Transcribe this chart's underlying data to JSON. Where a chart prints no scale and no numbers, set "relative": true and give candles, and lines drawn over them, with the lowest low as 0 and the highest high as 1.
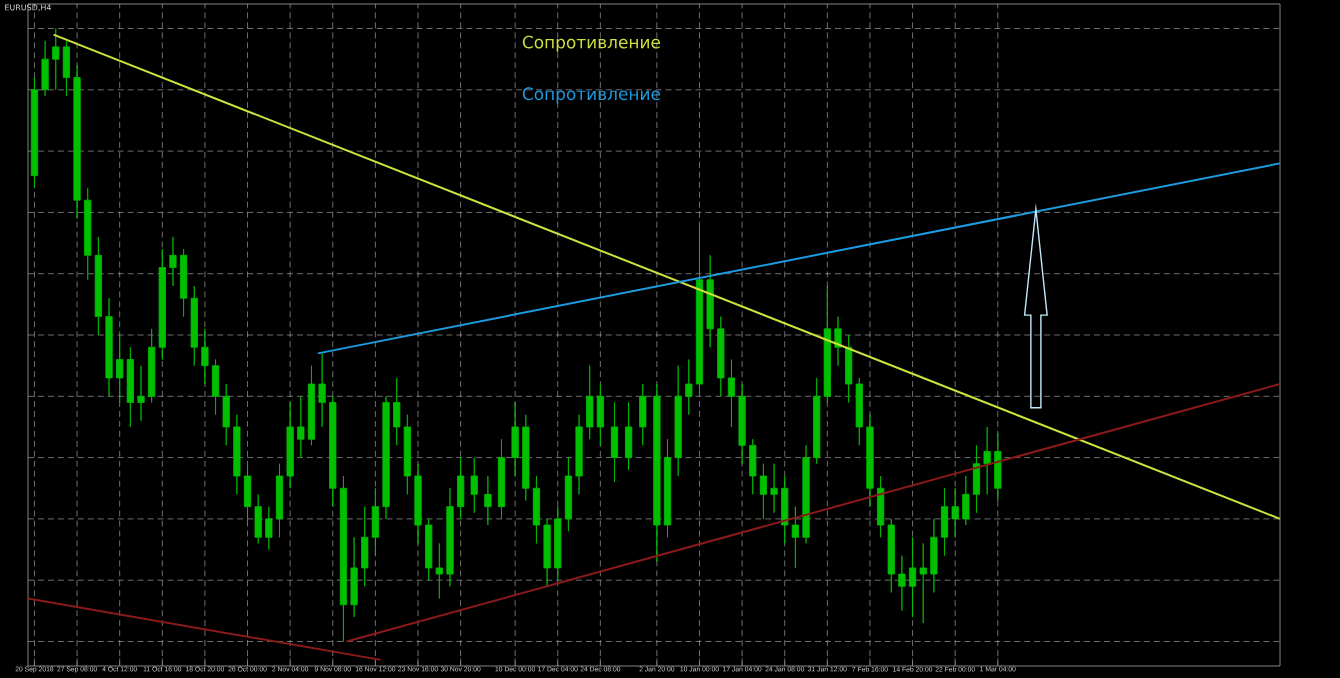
{
  "chart_data": {
    "type": "candlestick",
    "title": "EURUSD,H4",
    "relative": true,
    "color": "#00c000",
    "grid": true,
    "x": [
      "2018-09-20T04:00",
      "2018-09-21T23:00",
      "2018-09-23T18:00",
      "2018-09-25T13:00",
      "2018-09-27T08:00",
      "2018-09-29T03:00",
      "2018-09-30T22:00",
      "2018-10-02T17:00",
      "2018-10-04T12:00",
      "2018-10-06T07:00",
      "2018-10-08T02:00",
      "2018-10-09T21:00",
      "2018-10-11T16:00",
      "2018-10-13T11:00",
      "2018-10-15T06:00",
      "2018-10-17T01:00",
      "2018-10-18T20:00",
      "2018-10-20T15:00",
      "2018-10-22T10:00",
      "2018-10-24T05:00",
      "2018-10-26T00:00",
      "2018-10-27T19:00",
      "2018-10-29T14:00",
      "2018-10-31T09:00",
      "2018-11-02T04:00",
      "2018-11-03T23:00",
      "2018-11-05T18:00",
      "2018-11-07T13:00",
      "2018-11-09T08:00",
      "2018-11-11T03:00",
      "2018-11-12T22:00",
      "2018-11-14T17:00",
      "2018-11-16T12:00",
      "2018-11-18T07:00",
      "2018-11-20T02:00",
      "2018-11-21T21:00",
      "2018-11-23T16:00",
      "2018-11-25T11:00",
      "2018-11-27T06:00",
      "2018-11-29T01:00",
      "2018-11-30T20:00",
      "2018-12-03T03:00",
      "2018-12-05T10:00",
      "2018-12-07T17:00",
      "2018-12-10T00:00",
      "2018-12-11T19:00",
      "2018-12-13T14:00",
      "2018-12-15T09:00",
      "2018-12-17T04:00",
      "2018-12-18T23:00",
      "2018-12-20T18:00",
      "2018-12-22T13:00",
      "2018-12-24T08:00",
      "2018-12-26T17:00",
      "2018-12-29T02:00",
      "2018-12-31T11:00",
      "2019-01-02T20:00",
      "2019-01-04T15:00",
      "2019-01-06T10:00",
      "2019-01-08T05:00",
      "2019-01-10T00:00",
      "2019-01-11T19:00",
      "2019-01-13T14:00",
      "2019-01-15T09:00",
      "2019-01-17T04:00",
      "2019-01-18T23:00",
      "2019-01-20T18:00",
      "2019-01-22T13:00",
      "2019-01-24T08:00",
      "2019-01-26T03:00",
      "2019-01-27T22:00",
      "2019-01-29T17:00",
      "2019-01-31T12:00",
      "2019-02-02T07:00",
      "2019-02-04T02:00",
      "2019-02-05T21:00",
      "2019-02-07T16:00",
      "2019-02-09T11:00",
      "2019-02-11T06:00",
      "2019-02-13T01:00",
      "2019-02-14T20:00",
      "2019-02-16T15:00",
      "2019-02-18T10:00",
      "2019-02-20T05:00",
      "2019-02-22T00:00",
      "2019-02-23T19:00",
      "2019-02-25T14:00",
      "2019-02-27T09:00",
      "2019-03-01T04:00"
    ],
    "ohlc": [
      [
        0.76,
        0.92,
        0.74,
        0.9
      ],
      [
        0.9,
        0.98,
        0.89,
        0.95
      ],
      [
        0.95,
        1.0,
        0.9,
        0.97
      ],
      [
        0.97,
        0.98,
        0.89,
        0.92
      ],
      [
        0.92,
        0.94,
        0.69,
        0.72
      ],
      [
        0.72,
        0.74,
        0.59,
        0.63
      ],
      [
        0.63,
        0.66,
        0.5,
        0.53
      ],
      [
        0.53,
        0.56,
        0.4,
        0.43
      ],
      [
        0.43,
        0.5,
        0.39,
        0.46
      ],
      [
        0.46,
        0.48,
        0.35,
        0.39
      ],
      [
        0.39,
        0.45,
        0.36,
        0.4
      ],
      [
        0.4,
        0.51,
        0.39,
        0.48
      ],
      [
        0.48,
        0.64,
        0.46,
        0.61
      ],
      [
        0.61,
        0.66,
        0.58,
        0.63
      ],
      [
        0.63,
        0.64,
        0.53,
        0.56
      ],
      [
        0.56,
        0.58,
        0.45,
        0.48
      ],
      [
        0.48,
        0.51,
        0.42,
        0.45
      ],
      [
        0.45,
        0.46,
        0.37,
        0.4
      ],
      [
        0.4,
        0.42,
        0.32,
        0.35
      ],
      [
        0.35,
        0.37,
        0.24,
        0.27
      ],
      [
        0.27,
        0.29,
        0.19,
        0.22
      ],
      [
        0.22,
        0.24,
        0.16,
        0.17
      ],
      [
        0.17,
        0.22,
        0.15,
        0.2
      ],
      [
        0.2,
        0.29,
        0.17,
        0.27
      ],
      [
        0.27,
        0.39,
        0.25,
        0.35
      ],
      [
        0.35,
        0.4,
        0.3,
        0.33
      ],
      [
        0.33,
        0.45,
        0.32,
        0.42
      ],
      [
        0.42,
        0.47,
        0.35,
        0.39
      ],
      [
        0.39,
        0.4,
        0.22,
        0.25
      ],
      [
        0.25,
        0.27,
        0.0,
        0.06
      ],
      [
        0.06,
        0.17,
        0.04,
        0.12
      ],
      [
        0.12,
        0.22,
        0.09,
        0.17
      ],
      [
        0.17,
        0.25,
        0.14,
        0.22
      ],
      [
        0.22,
        0.4,
        0.2,
        0.39
      ],
      [
        0.39,
        0.43,
        0.32,
        0.35
      ],
      [
        0.35,
        0.37,
        0.24,
        0.27
      ],
      [
        0.27,
        0.29,
        0.16,
        0.19
      ],
      [
        0.19,
        0.2,
        0.1,
        0.12
      ],
      [
        0.12,
        0.16,
        0.07,
        0.11
      ],
      [
        0.11,
        0.25,
        0.09,
        0.22
      ],
      [
        0.22,
        0.3,
        0.2,
        0.27
      ],
      [
        0.27,
        0.3,
        0.21,
        0.24
      ],
      [
        0.24,
        0.27,
        0.19,
        0.22
      ],
      [
        0.22,
        0.33,
        0.2,
        0.3
      ],
      [
        0.3,
        0.39,
        0.27,
        0.35
      ],
      [
        0.35,
        0.37,
        0.23,
        0.25
      ],
      [
        0.25,
        0.27,
        0.16,
        0.19
      ],
      [
        0.19,
        0.2,
        0.09,
        0.12
      ],
      [
        0.12,
        0.22,
        0.1,
        0.2
      ],
      [
        0.2,
        0.3,
        0.18,
        0.27
      ],
      [
        0.27,
        0.37,
        0.24,
        0.35
      ],
      [
        0.35,
        0.45,
        0.33,
        0.4
      ],
      [
        0.4,
        0.42,
        0.32,
        0.35
      ],
      [
        0.35,
        0.39,
        0.26,
        0.3
      ],
      [
        0.3,
        0.39,
        0.28,
        0.35
      ],
      [
        0.35,
        0.42,
        0.32,
        0.4
      ],
      [
        0.4,
        0.42,
        0.13,
        0.19
      ],
      [
        0.19,
        0.33,
        0.17,
        0.3
      ],
      [
        0.3,
        0.45,
        0.27,
        0.4
      ],
      [
        0.4,
        0.46,
        0.37,
        0.42
      ],
      [
        0.42,
        0.68,
        0.4,
        0.59
      ],
      [
        0.59,
        0.63,
        0.48,
        0.51
      ],
      [
        0.51,
        0.53,
        0.4,
        0.43
      ],
      [
        0.43,
        0.46,
        0.35,
        0.4
      ],
      [
        0.4,
        0.42,
        0.29,
        0.32
      ],
      [
        0.32,
        0.33,
        0.24,
        0.27
      ],
      [
        0.27,
        0.29,
        0.2,
        0.24
      ],
      [
        0.24,
        0.29,
        0.21,
        0.25
      ],
      [
        0.25,
        0.27,
        0.16,
        0.19
      ],
      [
        0.19,
        0.22,
        0.12,
        0.17
      ],
      [
        0.17,
        0.32,
        0.16,
        0.3
      ],
      [
        0.3,
        0.43,
        0.29,
        0.4
      ],
      [
        0.4,
        0.58,
        0.39,
        0.51
      ],
      [
        0.51,
        0.53,
        0.45,
        0.48
      ],
      [
        0.48,
        0.5,
        0.39,
        0.42
      ],
      [
        0.42,
        0.43,
        0.32,
        0.35
      ],
      [
        0.35,
        0.37,
        0.22,
        0.25
      ],
      [
        0.25,
        0.27,
        0.17,
        0.19
      ],
      [
        0.19,
        0.2,
        0.08,
        0.11
      ],
      [
        0.11,
        0.14,
        0.05,
        0.09
      ],
      [
        0.09,
        0.17,
        0.04,
        0.12
      ],
      [
        0.12,
        0.16,
        0.03,
        0.11
      ],
      [
        0.11,
        0.2,
        0.08,
        0.17
      ],
      [
        0.17,
        0.25,
        0.14,
        0.22
      ],
      [
        0.22,
        0.25,
        0.17,
        0.2
      ],
      [
        0.2,
        0.27,
        0.19,
        0.24
      ],
      [
        0.24,
        0.32,
        0.21,
        0.29
      ],
      [
        0.29,
        0.35,
        0.24,
        0.31
      ],
      [
        0.31,
        0.34,
        0.23,
        0.25
      ]
    ],
    "xlim": [
      "2018-09-19T02:00",
      "2019-04-17T15:00"
    ],
    "xticks": [
      {
        "value": "2018-09-20T04:00",
        "label": "20 Sep 2018"
      },
      {
        "value": "2018-09-27T08:00",
        "label": "27 Sep 08:00"
      },
      {
        "value": "2018-10-04T12:00",
        "label": "4 Oct 12:00"
      },
      {
        "value": "2018-10-11T16:00",
        "label": "11 Oct 16:00"
      },
      {
        "value": "2018-10-18T20:00",
        "label": "18 Oct 20:00"
      },
      {
        "value": "2018-10-26T00:00",
        "label": "26 Oct 00:00"
      },
      {
        "value": "2018-11-02T04:00",
        "label": "2 Nov 04:00"
      },
      {
        "value": "2018-11-09T08:00",
        "label": "9 Nov 08:00"
      },
      {
        "value": "2018-11-16T12:00",
        "label": "16 Nov 12:00"
      },
      {
        "value": "2018-11-23T16:00",
        "label": "23 Nov 16:00"
      },
      {
        "value": "2018-11-30T20:00",
        "label": "30 Nov 20:00"
      },
      {
        "value": "2018-12-10T00:00",
        "label": "10 Dec 00:00"
      },
      {
        "value": "2018-12-17T04:00",
        "label": "17 Dec 04:00"
      },
      {
        "value": "2018-12-24T08:00",
        "label": "24 Dec 08:00"
      },
      {
        "value": "2019-01-02T20:00",
        "label": "2 Jan 20:00"
      },
      {
        "value": "2019-01-10T00:00",
        "label": "10 Jan 00:00"
      },
      {
        "value": "2019-01-17T04:00",
        "label": "17 Jan 04:00"
      },
      {
        "value": "2019-01-24T08:00",
        "label": "24 Jan 08:00"
      },
      {
        "value": "2019-01-31T12:00",
        "label": "31 Jan 12:00"
      },
      {
        "value": "2019-02-07T16:00",
        "label": "7 Feb 16:00"
      },
      {
        "value": "2019-02-14T20:00",
        "label": "14 Feb 20:00"
      },
      {
        "value": "2019-02-22T00:00",
        "label": "22 Feb 00:00"
      },
      {
        "value": "2019-03-01T04:00",
        "label": "1 Mar 04:00"
      }
    ],
    "series": [
      {
        "type": "line",
        "color": "#cde23c",
        "x": [
          "2018-09-23T09:00",
          "2019-04-17T15:00"
        ],
        "values": [
          0.99,
          0.2
        ]
      },
      {
        "type": "line",
        "color": "#1e9be0",
        "x": [
          "2018-11-06T20:00",
          "2019-04-17T15:00"
        ],
        "values": [
          0.47,
          0.78
        ]
      },
      {
        "type": "line",
        "color": "#8b1a1a",
        "x": [
          "2018-09-19T02:00",
          "2018-11-17T09:30"
        ],
        "values": [
          0.07,
          -0.03
        ]
      },
      {
        "type": "line",
        "color": "#8b1a1a",
        "x": [
          "2018-11-11T16:00",
          "2019-04-17T15:00"
        ],
        "values": [
          0.0,
          0.42
        ]
      }
    ],
    "annotations": [
      "Сопротивление",
      "Сопротивление"
    ]
  }
}
